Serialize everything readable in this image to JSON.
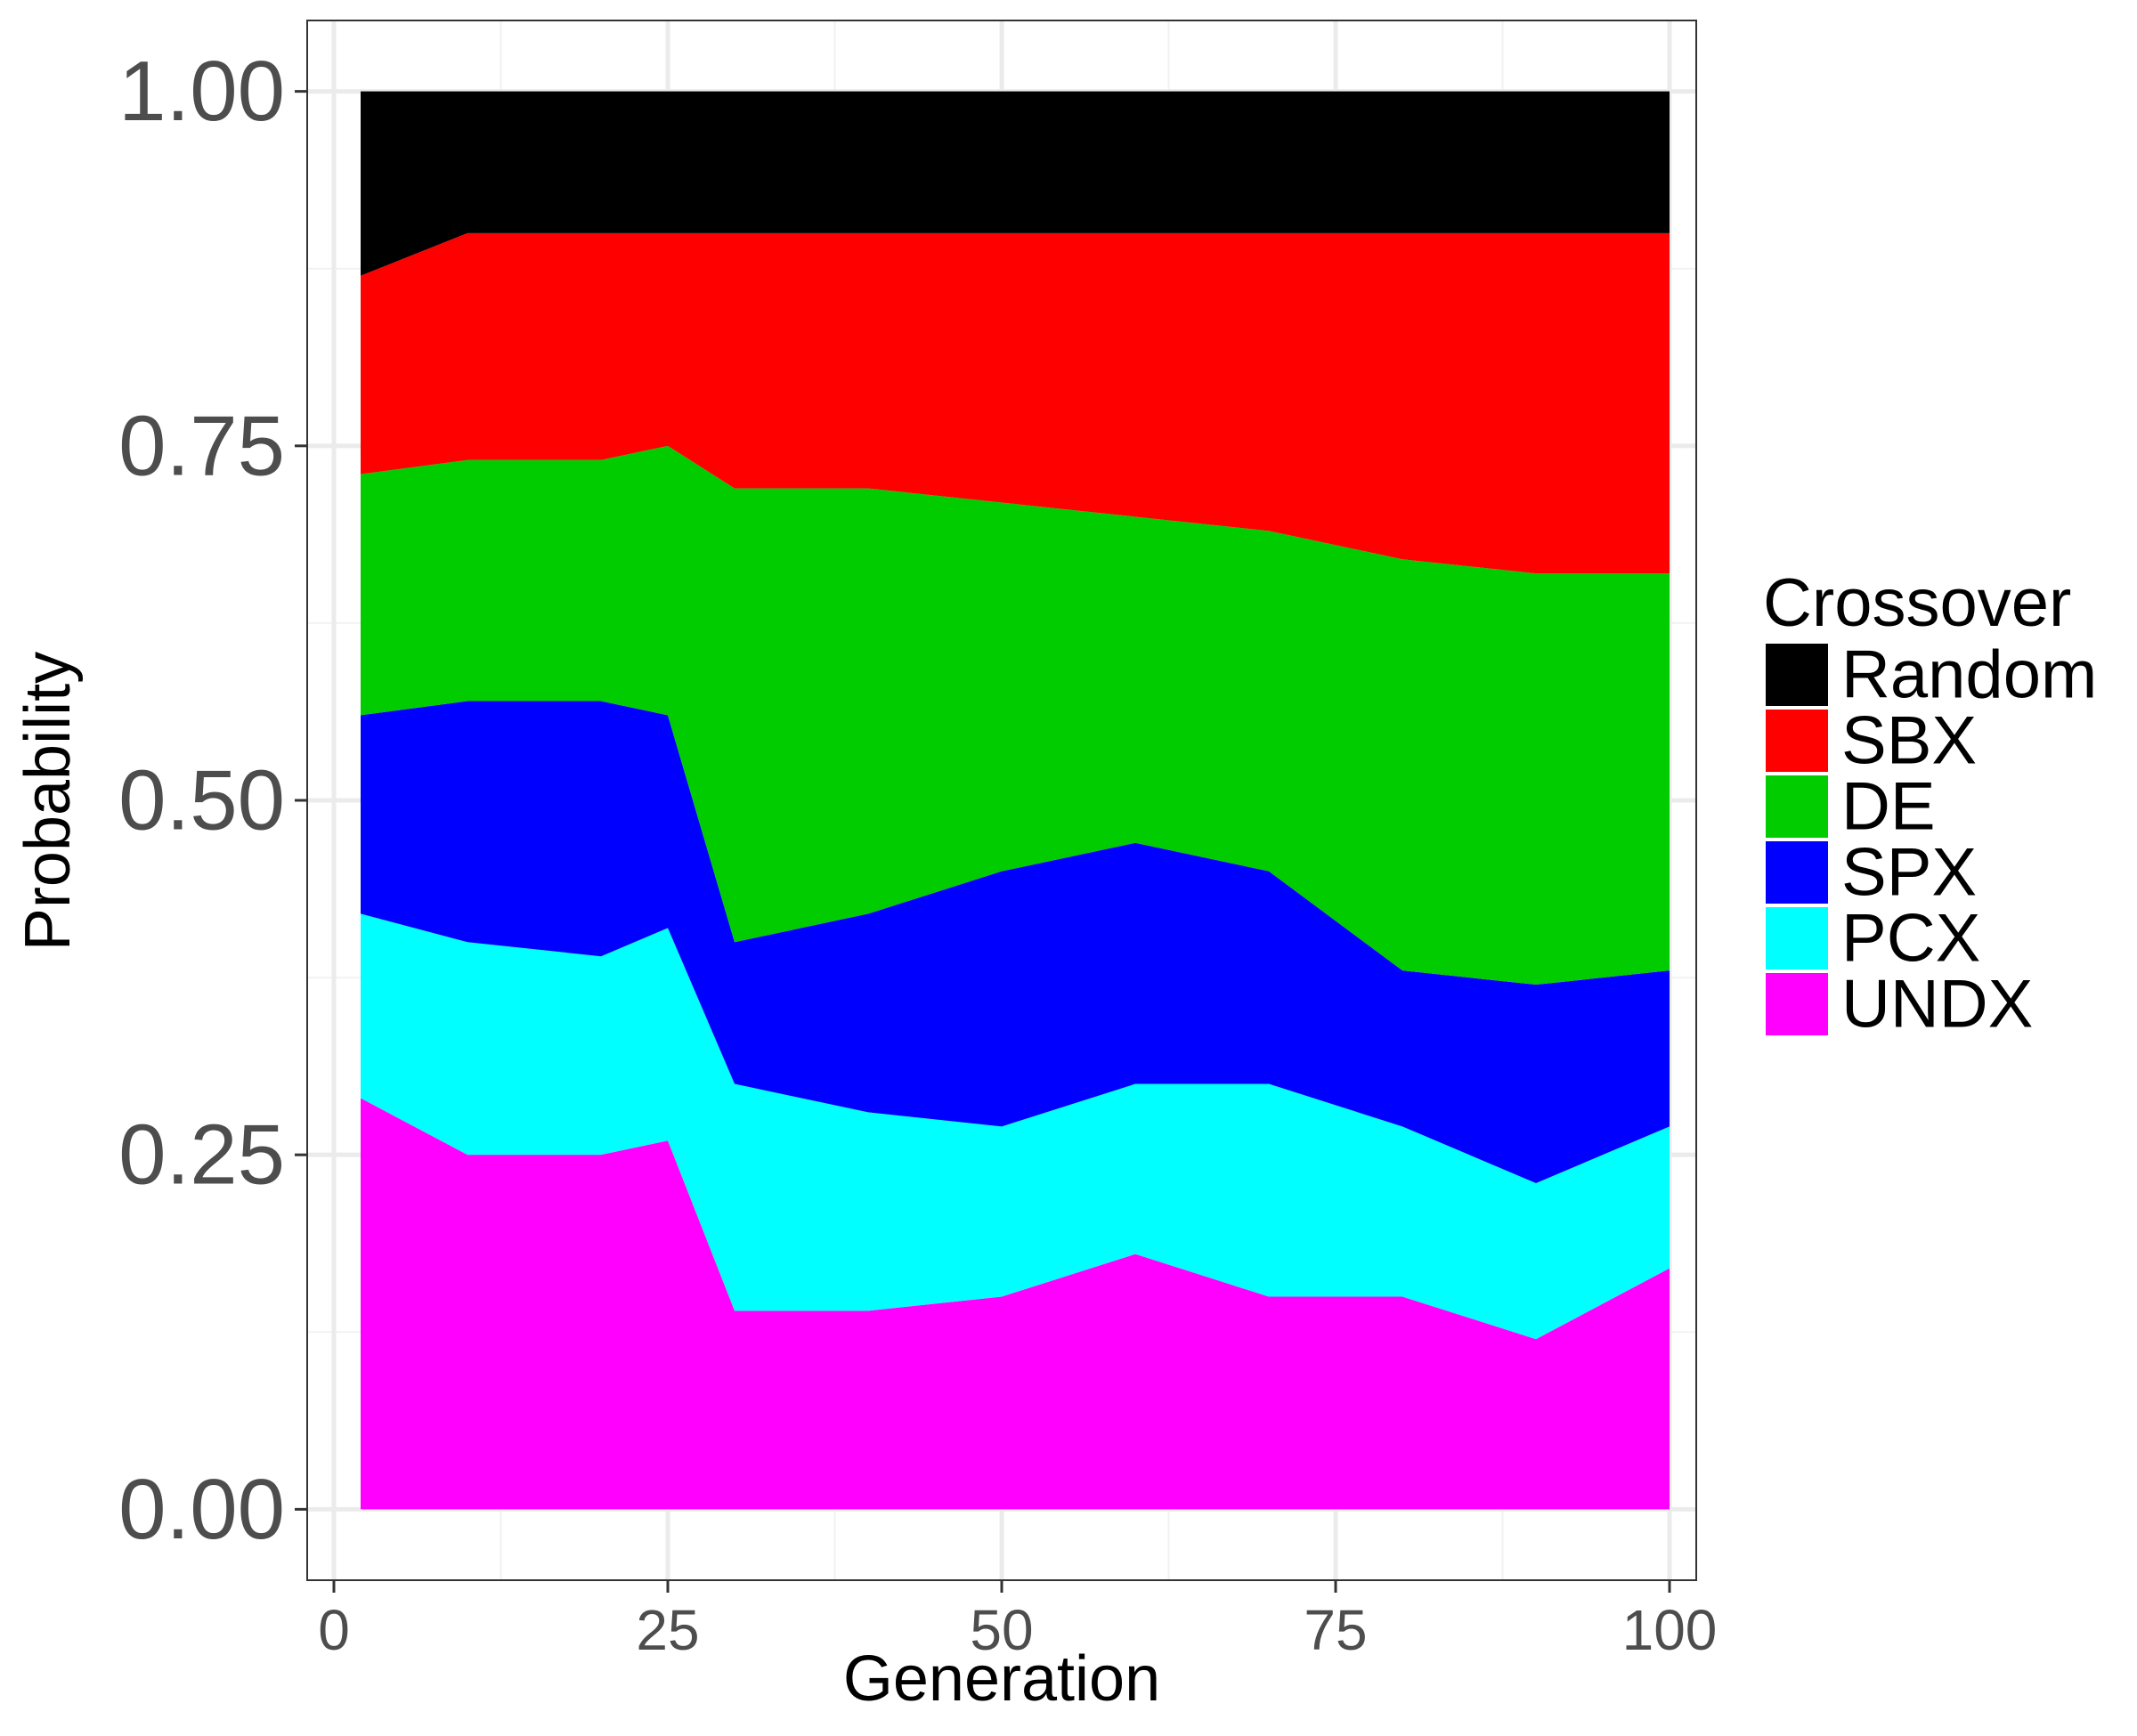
{
  "chart_data": {
    "type": "area",
    "stacked": true,
    "xlabel": "Generation",
    "ylabel": "Probability",
    "xlim": [
      -2,
      102
    ],
    "ylim": [
      -0.05,
      1.05
    ],
    "x_ticks": [
      0,
      25,
      50,
      75,
      100
    ],
    "x_tick_labels": [
      "0",
      "25",
      "50",
      "75",
      "100"
    ],
    "y_ticks": [
      0,
      0.25,
      0.5,
      0.75,
      1.0
    ],
    "y_tick_labels": [
      "0.00",
      "0.25",
      "0.50",
      "0.75",
      "1.00"
    ],
    "grid": true,
    "legend": {
      "title": "Crossover",
      "position": "right"
    },
    "x": [
      2,
      10,
      20,
      25,
      30,
      40,
      50,
      60,
      70,
      80,
      90,
      100
    ],
    "series": [
      {
        "name": "UNDX",
        "color": "#ff00ff",
        "values": [
          0.29,
          0.25,
          0.25,
          0.26,
          0.14,
          0.14,
          0.15,
          0.18,
          0.15,
          0.15,
          0.12,
          0.17
        ]
      },
      {
        "name": "PCX",
        "color": "#00ffff",
        "values": [
          0.13,
          0.15,
          0.14,
          0.15,
          0.16,
          0.14,
          0.12,
          0.12,
          0.15,
          0.12,
          0.11,
          0.1
        ]
      },
      {
        "name": "SPX",
        "color": "#0000ff",
        "values": [
          0.14,
          0.17,
          0.18,
          0.15,
          0.1,
          0.14,
          0.18,
          0.17,
          0.15,
          0.11,
          0.14,
          0.11
        ]
      },
      {
        "name": "DE",
        "color": "#00cc00",
        "values": [
          0.17,
          0.17,
          0.17,
          0.19,
          0.32,
          0.3,
          0.26,
          0.23,
          0.24,
          0.29,
          0.29,
          0.28
        ]
      },
      {
        "name": "SBX",
        "color": "#ff0000",
        "values": [
          0.14,
          0.16,
          0.16,
          0.15,
          0.18,
          0.18,
          0.19,
          0.2,
          0.21,
          0.23,
          0.24,
          0.24
        ]
      },
      {
        "name": "Random",
        "color": "#000000",
        "values": [
          0.13,
          0.1,
          0.1,
          0.1,
          0.1,
          0.1,
          0.1,
          0.1,
          0.1,
          0.1,
          0.1,
          0.1
        ]
      }
    ]
  }
}
